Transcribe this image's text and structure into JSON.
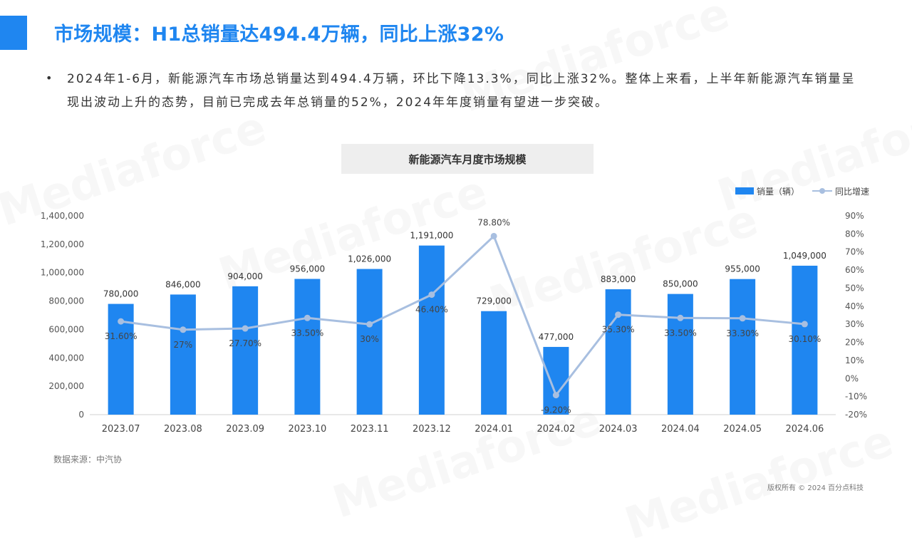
{
  "header": {
    "title": "市场规模：H1总销量达494.4万辆，同比上涨32%"
  },
  "summary": {
    "bullet": "•",
    "text": "2024年1-6月，新能源汽车市场总销量达到494.4万辆，环比下降13.3%，同比上涨32%。整体上来看，上半年新能源汽车销量呈现出波动上升的态势，目前已完成去年总销量的52%，2024年年度销量有望进一步突破。"
  },
  "legend": {
    "bar_label": "销量（辆）",
    "line_label": "同比增速"
  },
  "footer": {
    "source": "数据来源：中汽协",
    "copyright": "版权所有 © 2024 百分点科技"
  },
  "watermark_text": "Mediaforce",
  "colors": {
    "accent": "#1f86f0",
    "bar": "#1f86f0",
    "line": "#a8bfe0"
  },
  "chart_data": {
    "type": "bar",
    "title": "新能源汽车月度市场规模",
    "categories": [
      "2023.07",
      "2023.08",
      "2023.09",
      "2023.10",
      "2023.11",
      "2023.12",
      "2024.01",
      "2024.02",
      "2024.03",
      "2024.04",
      "2024.05",
      "2024.06"
    ],
    "series": [
      {
        "name": "销量（辆）",
        "type": "bar",
        "axis": "left",
        "values": [
          780000,
          846000,
          904000,
          956000,
          1026000,
          1191000,
          729000,
          477000,
          883000,
          850000,
          955000,
          1049000
        ],
        "labels": [
          "780,000",
          "846,000",
          "904,000",
          "956,000",
          "1,026,000",
          "1,191,000",
          "729,000",
          "477,000",
          "883,000",
          "850,000",
          "955,000",
          "1,049,000"
        ]
      },
      {
        "name": "同比增速",
        "type": "line",
        "axis": "right",
        "values": [
          31.6,
          27,
          27.7,
          33.5,
          30,
          46.4,
          78.8,
          -9.2,
          35.3,
          33.5,
          33.3,
          30.1
        ],
        "labels": [
          "31.60%",
          "27%",
          "27.70%",
          "33.50%",
          "30%",
          "46.40%",
          "78.80%",
          "-9.20%",
          "35.30%",
          "33.50%",
          "33.30%",
          "30.10%"
        ]
      }
    ],
    "y_left": {
      "ylim": [
        0,
        1400000
      ],
      "ticks": [
        "0",
        "200,000",
        "400,000",
        "600,000",
        "800,000",
        "1,000,000",
        "1,200,000",
        "1,400,000"
      ]
    },
    "y_right": {
      "ylim": [
        -20,
        90
      ],
      "ticks": [
        "-20%",
        "-10%",
        "0%",
        "10%",
        "20%",
        "30%",
        "40%",
        "50%",
        "60%",
        "70%",
        "80%",
        "90%"
      ]
    },
    "grid": false,
    "legend_position": "top-right"
  }
}
